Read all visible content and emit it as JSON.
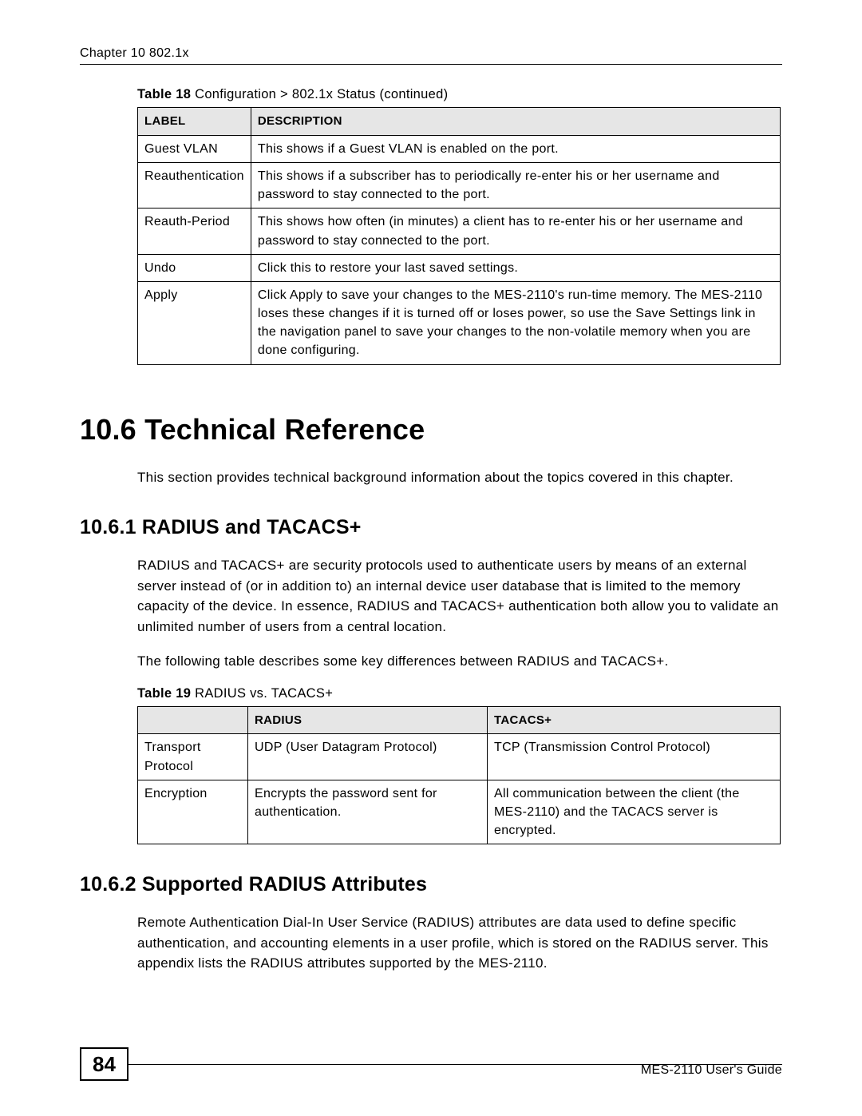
{
  "chapter_header": "Chapter 10 802.1x",
  "table18": {
    "caption_bold": "Table 18",
    "caption_rest": "   Configuration > 802.1x Status   (continued)",
    "columns": [
      "LABEL",
      "DESCRIPTION"
    ],
    "rows": [
      {
        "label": "Guest VLAN",
        "desc": "This shows if a Guest VLAN is enabled on the port."
      },
      {
        "label": "Reauthentication",
        "desc": "This shows if a subscriber has to periodically re-enter his or her username and password to stay connected to the port."
      },
      {
        "label": "Reauth-Period",
        "desc": "This shows how often (in minutes) a client has to re-enter his or her username and password to stay connected to the port."
      },
      {
        "label": "Undo",
        "desc": "Click this to restore your last saved settings."
      },
      {
        "label": "Apply",
        "desc": "Click Apply to save your changes to the MES-2110's run-time memory. The MES-2110 loses these changes if it is turned off or loses power, so use the Save Settings link in the navigation panel to save your changes to the non-volatile memory when you are done configuring."
      }
    ]
  },
  "sections": {
    "h1": "10.6  Technical Reference",
    "intro": "This section provides technical background information about the topics covered in this chapter.",
    "h2_1": "10.6.1  RADIUS and TACACS+",
    "p1": "RADIUS and TACACS+ are security protocols used to authenticate users by means of an external server instead of (or in addition to) an internal device user database that is limited to the memory capacity of the device. In essence, RADIUS and TACACS+ authentication both allow you to validate an unlimited number of users from a central location.",
    "p2": "The following table describes some key differences between RADIUS and TACACS+.",
    "h2_2": "10.6.2  Supported RADIUS Attributes",
    "p3": "Remote Authentication Dial-In User Service (RADIUS) attributes are data used to define specific authentication, and accounting elements in a user profile, which is stored on the RADIUS server. This appendix lists the RADIUS attributes supported by the MES-2110."
  },
  "table19": {
    "caption_bold": "Table 19",
    "caption_rest": "   RADIUS vs. TACACS+",
    "columns": [
      "",
      "RADIUS",
      "TACACS+"
    ],
    "rows": [
      {
        "c0": "Transport Protocol",
        "c1": "UDP (User Datagram Protocol)",
        "c2": "TCP (Transmission Control Protocol)"
      },
      {
        "c0": "Encryption",
        "c1": "Encrypts the password sent for authentication.",
        "c2": "All communication between the client (the MES-2110) and the TACACS server is encrypted."
      }
    ]
  },
  "footer": {
    "page_number": "84",
    "guide": "MES-2110 User's Guide"
  }
}
